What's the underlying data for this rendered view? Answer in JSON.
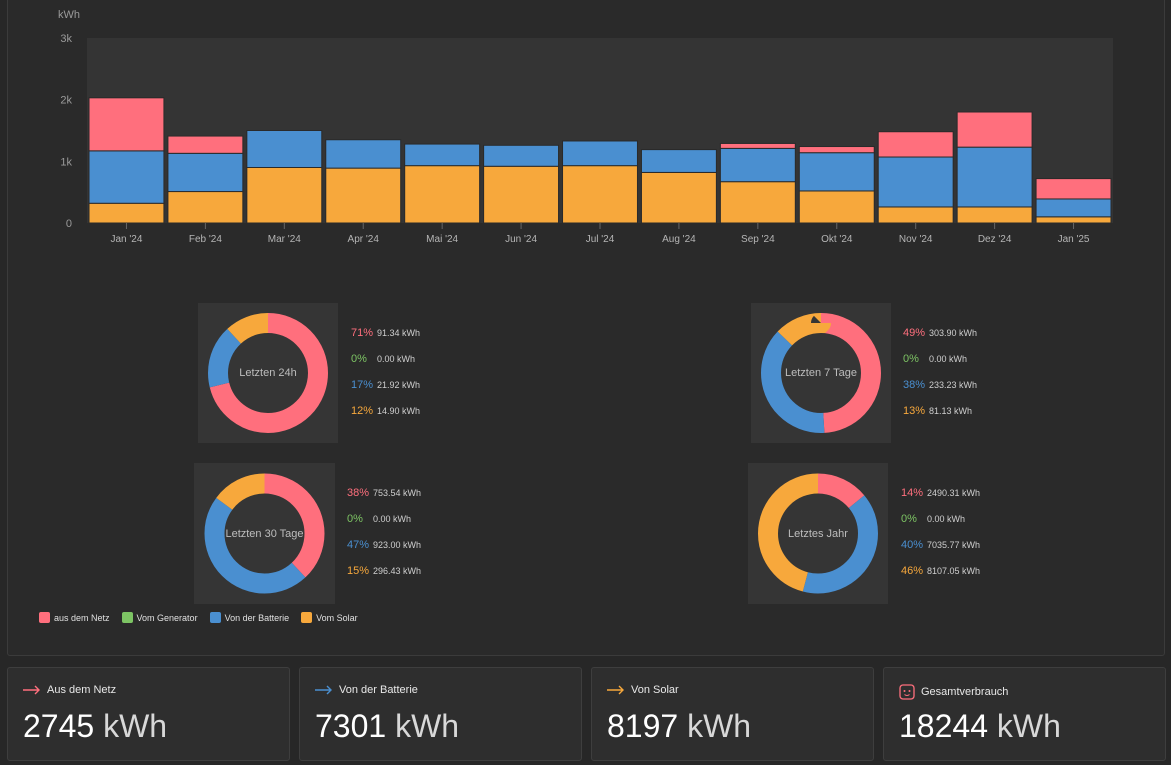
{
  "colors": {
    "grid": "#ff6f7d",
    "generator": "#7dc464",
    "battery": "#4a8fd0",
    "solar": "#f7a83c",
    "plot_bg": "#343434"
  },
  "chart_data": {
    "type": "bar",
    "stacked": true,
    "ylabel": "kWh",
    "ylim": [
      0,
      3000
    ],
    "yticks": [
      "0",
      "1k",
      "2k",
      "3k"
    ],
    "ytick_values": [
      0,
      1000,
      2000,
      3000
    ],
    "categories": [
      "Jan '24",
      "Feb '24",
      "Mar '24",
      "Apr '24",
      "Mai '24",
      "Jun '24",
      "Jul '24",
      "Aug '24",
      "Sep '24",
      "Okt '24",
      "Nov '24",
      "Dez '24",
      "Jan '25"
    ],
    "series": [
      {
        "name": "Vom Solar",
        "color": "#f7a83c",
        "values": [
          320,
          510,
          900,
          890,
          930,
          920,
          930,
          820,
          670,
          520,
          260,
          260,
          100
        ]
      },
      {
        "name": "Von der Batterie",
        "color": "#4a8fd0",
        "values": [
          850,
          620,
          600,
          460,
          350,
          340,
          400,
          370,
          540,
          620,
          810,
          970,
          290
        ]
      },
      {
        "name": "aus dem Netz",
        "color": "#ff6f7d",
        "values": [
          860,
          280,
          0,
          0,
          0,
          0,
          0,
          0,
          80,
          100,
          410,
          570,
          330
        ]
      }
    ]
  },
  "donuts": [
    {
      "center_label": "Letzten 24h",
      "entries": [
        {
          "pct": "71%",
          "value": "91.34 kWh",
          "color": "#ff6f7d",
          "fraction": 0.71
        },
        {
          "pct": "0%",
          "value": "0.00 kWh",
          "color": "#7dc464",
          "fraction": 0.0
        },
        {
          "pct": "17%",
          "value": "21.92 kWh",
          "color": "#4a8fd0",
          "fraction": 0.17
        },
        {
          "pct": "12%",
          "value": "14.90 kWh",
          "color": "#f7a83c",
          "fraction": 0.12
        }
      ]
    },
    {
      "center_label": "Letzten 7 Tage",
      "entries": [
        {
          "pct": "49%",
          "value": "303.90 kWh",
          "color": "#ff6f7d",
          "fraction": 0.49
        },
        {
          "pct": "0%",
          "value": "0.00 kWh",
          "color": "#7dc464",
          "fraction": 0.0
        },
        {
          "pct": "38%",
          "value": "233.23 kWh",
          "color": "#4a8fd0",
          "fraction": 0.38
        },
        {
          "pct": "13%",
          "value": "81.13 kWh",
          "color": "#f7a83c",
          "fraction": 0.13
        }
      ]
    },
    {
      "center_label": "Letzten 30 Tage",
      "entries": [
        {
          "pct": "38%",
          "value": "753.54 kWh",
          "color": "#ff6f7d",
          "fraction": 0.38
        },
        {
          "pct": "0%",
          "value": "0.00 kWh",
          "color": "#7dc464",
          "fraction": 0.0
        },
        {
          "pct": "47%",
          "value": "923.00 kWh",
          "color": "#4a8fd0",
          "fraction": 0.47
        },
        {
          "pct": "15%",
          "value": "296.43 kWh",
          "color": "#f7a83c",
          "fraction": 0.15
        }
      ]
    },
    {
      "center_label": "Letztes Jahr",
      "entries": [
        {
          "pct": "14%",
          "value": "2490.31 kWh",
          "color": "#ff6f7d",
          "fraction": 0.14
        },
        {
          "pct": "0%",
          "value": "0.00 kWh",
          "color": "#7dc464",
          "fraction": 0.0
        },
        {
          "pct": "40%",
          "value": "7035.77 kWh",
          "color": "#4a8fd0",
          "fraction": 0.4
        },
        {
          "pct": "46%",
          "value": "8107.05 kWh",
          "color": "#f7a83c",
          "fraction": 0.46
        }
      ]
    }
  ],
  "legend": [
    {
      "label": "aus dem Netz",
      "color": "#ff6f7d"
    },
    {
      "label": "Vom Generator",
      "color": "#7dc464"
    },
    {
      "label": "Von der Batterie",
      "color": "#4a8fd0"
    },
    {
      "label": "Vom Solar",
      "color": "#f7a83c"
    }
  ],
  "stats": [
    {
      "title": "Aus dem Netz",
      "value": "2745",
      "unit": "kWh",
      "icon": "arrow-right-icon",
      "color": "#ff6f7d"
    },
    {
      "title": "Von der Batterie",
      "value": "7301",
      "unit": "kWh",
      "icon": "arrow-right-icon",
      "color": "#4a8fd0"
    },
    {
      "title": "Von Solar",
      "value": "8197",
      "unit": "kWh",
      "icon": "arrow-right-icon",
      "color": "#f7a83c"
    },
    {
      "title": "Gesamtverbrauch",
      "value": "18244",
      "unit": "kWh",
      "icon": "outlet-icon",
      "color": "#ff6f7d"
    }
  ]
}
